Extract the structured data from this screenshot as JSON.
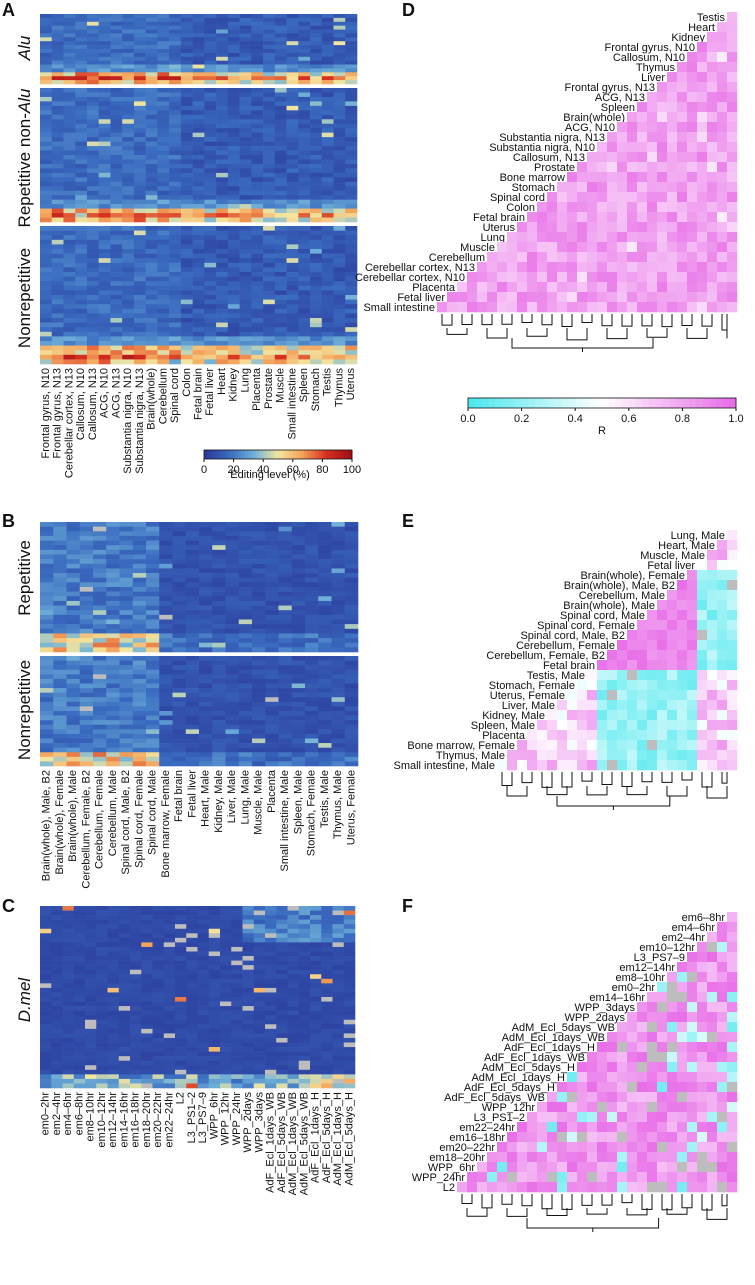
{
  "panels": {
    "A": {
      "letter": "A",
      "group_labels": [
        {
          "text": "Alu",
          "italic": true
        },
        {
          "text": "Repetitive non-",
          "italic_suffix": "Alu"
        },
        {
          "text": "Nonrepetitive",
          "italic": false
        }
      ],
      "x_labels": [
        "Frontal gyrus, N10",
        "Frontal gyrus, N13",
        "Cerebellar cortex, N13",
        "Callosum, N10",
        "Callosum, N13",
        "ACG, N10",
        "ACG, N13",
        "Substantia nigra, N10",
        "Substantia nigra, N13",
        "Brain(whole)",
        "Cerebellum",
        "Spinal cord",
        "Colon",
        "Fetal brain",
        "Fetal liver",
        "Heart",
        "Kidney",
        "Lung",
        "Placenta",
        "Prostate",
        "Muscle",
        "Small intestine",
        "Spleen",
        "Stomach",
        "Testis",
        "Thymus",
        "Uterus"
      ],
      "colorbar": {
        "ticks": [
          "0",
          "20",
          "40",
          "60",
          "80",
          "100"
        ],
        "label": "Editing level (%)"
      }
    },
    "B": {
      "letter": "B",
      "group_labels": [
        {
          "text": "Repetitive"
        },
        {
          "text": "Nonrepetitive"
        }
      ],
      "x_labels": [
        "Brain(whole), Male, B2",
        "Brain(whole), Female",
        "Brain(whole), Male",
        "Cerebellum, Female, B2",
        "Cerebellum, Female",
        "Cerebellum, Male",
        "Spinal cord, Male, B2",
        "Spinal cord, Female",
        "Spinal cord, Male",
        "Bone marrow, Female",
        "Fetal brain",
        "Fetal liver",
        "Heart, Male",
        "Kidney, Male",
        "Liver, Male",
        "Lung, Male",
        "Muscle, Male",
        "Placenta",
        "Small intestine, Male",
        "Spleen, Male",
        "Stomach, Female",
        "Testis, Male",
        "Thymus, Male",
        "Uterus, Female"
      ]
    },
    "C": {
      "letter": "C",
      "group_labels": [
        {
          "text": "D.mel",
          "italic": true
        }
      ],
      "x_labels": [
        "em0–2hr",
        "em2–4hr",
        "em4–6hr",
        "em6–8hr",
        "em8–10hr",
        "em10–12hr",
        "em12–14hr",
        "em14–16hr",
        "em16–18hr",
        "em18–20hr",
        "em20–22hr",
        "em22–24hr",
        "L2",
        "L3_PS1–2",
        "L3_PS7–9",
        "WPP_6hr",
        "WPP_12hr",
        "WPP_24hr",
        "WPP_2days",
        "WPP_3days",
        "AdF_Ecl_1days_WB",
        "AdF_Ecl_5days_WB",
        "AdM_Ecl_1days_WB",
        "AdM_Ecl_5days_WB",
        "AdF_Ecl_1days_H",
        "AdF_Ecl_5days_H",
        "AdM_Ecl_1days_H",
        "AdM_Ecl_5days_H"
      ]
    },
    "D": {
      "letter": "D",
      "labels": [
        "Testis",
        "Heart",
        "Kidney",
        "Frontal gyrus, N10",
        "Callosum, N10",
        "Thymus",
        "Liver",
        "Frontal gyrus, N13",
        "ACG, N13",
        "Spleen",
        "Brain(whole)",
        "ACG, N10",
        "Substantia nigra, N13",
        "Substantia nigra, N10",
        "Callosum, N13",
        "Prostate",
        "Bone marrow",
        "Stomach",
        "Spinal cord",
        "Colon",
        "Fetal brain",
        "Uterus",
        "Lung",
        "Muscle",
        "Cerebellum",
        "Cerebellar cortex, N13",
        "Cerebellar cortex, N10",
        "Placenta",
        "Fetal liver",
        "Small intestine"
      ],
      "colorbar": {
        "ticks": [
          "0.0",
          "0.2",
          "0.4",
          "0.6",
          "0.8",
          "1.0"
        ],
        "label": "R"
      }
    },
    "E": {
      "letter": "E",
      "labels": [
        "Lung, Male",
        "Heart, Male",
        "Muscle, Male",
        "Fetal liver",
        "Brain(whole), Female",
        "Brain(whole), Male, B2",
        "Cerebellum, Male",
        "Brain(whole), Male",
        "Spinal cord, Male",
        "Spinal cord, Female",
        "Spinal cord, Male, B2",
        "Cerebellum, Female",
        "Cerebellum, Female, B2",
        "Fetal brain",
        "Testis, Male",
        "Stomach, Female",
        "Uterus, Female",
        "Liver, Male",
        "Kidney, Male",
        "Spleen, Male",
        "Placenta",
        "Bone marrow, Female",
        "Thymus, Male",
        "Small intestine, Male"
      ]
    },
    "F": {
      "letter": "F",
      "labels": [
        "em6–8hr",
        "em4–6hr",
        "em2–4hr",
        "em10–12hr",
        "L3_PS7–9",
        "em12–14hr",
        "em8–10hr",
        "em0–2hr",
        "em14–16hr",
        "WPP_3days",
        "WPP_2days",
        "AdM_Ecl_5days_WB",
        "AdM_Ecl_1days_WB",
        "AdF_Ecl_1days_H",
        "AdF_Ecl_1days_WB",
        "AdM_Ecl_5days_H",
        "AdM_Ecl_1days_H",
        "AdF_Ecl_5days_H",
        "AdF_Ecl_5days_WB",
        "WPP_12hr",
        "L3_PS1–2",
        "em22–24hr",
        "em16–18hr",
        "em20–22hr",
        "em18–20hr",
        "WPP_6hr",
        "WPP_24hr",
        "L2"
      ]
    }
  },
  "chart_data": [
    {
      "type": "heatmap",
      "panel": "A",
      "value_range": [
        0,
        100
      ],
      "colorbar_label": "Editing level (%)"
    },
    {
      "type": "heatmap",
      "panel": "B",
      "value_range": [
        0,
        100
      ]
    },
    {
      "type": "heatmap",
      "panel": "C",
      "value_range": [
        0,
        100
      ]
    },
    {
      "type": "heatmap",
      "panel": "D",
      "value_range": [
        0,
        1
      ],
      "colorbar_label": "R"
    },
    {
      "type": "heatmap",
      "panel": "E",
      "value_range": [
        0,
        1
      ]
    },
    {
      "type": "heatmap",
      "panel": "F",
      "value_range": [
        0,
        1
      ]
    }
  ],
  "colors": {
    "heat_low": "#2b3a9c",
    "heat_mid": "#f3e6a0",
    "heat_high": "#a50f15",
    "corr_low": "#4de8ee",
    "corr_mid": "#ffffff",
    "corr_high": "#e86ee8",
    "missing": "#bdbdbd"
  }
}
